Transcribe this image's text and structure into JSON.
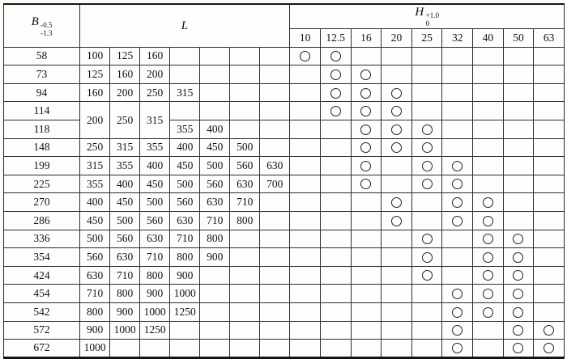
{
  "headers": {
    "b": {
      "base": "B",
      "sup": "-0.5",
      "sub": "-1.3"
    },
    "l": "L",
    "h": {
      "base": "H",
      "sub": "0",
      "sup": "+1.0"
    },
    "h_columns": [
      "10",
      "12.5",
      "16",
      "20",
      "25",
      "32",
      "40",
      "50",
      "63"
    ]
  },
  "marker": {
    "type": "circle",
    "meaning": "available-combination"
  },
  "colors": {
    "ink": "#1c1c1c",
    "paper": "#fbfbf8"
  },
  "rows": [
    {
      "b": "58",
      "l": [
        "100",
        "125",
        "160",
        "",
        "",
        "",
        ""
      ],
      "circles": [
        1,
        1,
        0,
        0,
        0,
        0,
        0,
        0,
        0
      ]
    },
    {
      "b": "73",
      "l": [
        "125",
        "160",
        "200",
        "",
        "",
        "",
        ""
      ],
      "circles": [
        0,
        1,
        1,
        0,
        0,
        0,
        0,
        0,
        0
      ]
    },
    {
      "b": "94",
      "l": [
        "160",
        "200",
        "250",
        "315",
        "",
        "",
        ""
      ],
      "circles": [
        0,
        1,
        1,
        1,
        0,
        0,
        0,
        0,
        0
      ]
    },
    {
      "b": "114",
      "l": [
        "200",
        "250",
        "315",
        "",
        "",
        "",
        ""
      ],
      "l_rowspan": [
        2,
        2,
        2,
        1,
        1,
        1,
        1
      ],
      "circles": [
        0,
        1,
        1,
        1,
        0,
        0,
        0,
        0,
        0
      ]
    },
    {
      "b": "118",
      "l": [
        "355",
        "400",
        "",
        ""
      ],
      "circles": [
        0,
        0,
        1,
        1,
        1,
        0,
        0,
        0,
        0
      ]
    },
    {
      "b": "148",
      "l": [
        "250",
        "315",
        "355",
        "400",
        "450",
        "500",
        ""
      ],
      "circles": [
        0,
        0,
        1,
        1,
        1,
        0,
        0,
        0,
        0
      ]
    },
    {
      "b": "199",
      "l": [
        "315",
        "355",
        "400",
        "450",
        "500",
        "560",
        "630"
      ],
      "circles": [
        0,
        0,
        1,
        0,
        1,
        1,
        0,
        0,
        0
      ]
    },
    {
      "b": "225",
      "l": [
        "355",
        "400",
        "450",
        "500",
        "560",
        "630",
        "700"
      ],
      "circles": [
        0,
        0,
        1,
        0,
        1,
        1,
        0,
        0,
        0
      ]
    },
    {
      "b": "270",
      "l": [
        "400",
        "450",
        "500",
        "560",
        "630",
        "710",
        ""
      ],
      "circles": [
        0,
        0,
        0,
        1,
        0,
        1,
        1,
        0,
        0
      ]
    },
    {
      "b": "286",
      "l": [
        "450",
        "500",
        "560",
        "630",
        "710",
        "800",
        ""
      ],
      "circles": [
        0,
        0,
        0,
        1,
        0,
        1,
        1,
        0,
        0
      ]
    },
    {
      "b": "336",
      "l": [
        "500",
        "560",
        "630",
        "710",
        "800",
        "",
        ""
      ],
      "circles": [
        0,
        0,
        0,
        0,
        1,
        0,
        1,
        1,
        0
      ]
    },
    {
      "b": "354",
      "l": [
        "560",
        "630",
        "710",
        "800",
        "900",
        "",
        ""
      ],
      "circles": [
        0,
        0,
        0,
        0,
        1,
        0,
        1,
        1,
        0
      ]
    },
    {
      "b": "424",
      "l": [
        "630",
        "710",
        "800",
        "900",
        "",
        "",
        ""
      ],
      "circles": [
        0,
        0,
        0,
        0,
        1,
        0,
        1,
        1,
        0
      ]
    },
    {
      "b": "454",
      "l": [
        "710",
        "800",
        "900",
        "1000",
        "",
        "",
        ""
      ],
      "circles": [
        0,
        0,
        0,
        0,
        0,
        1,
        1,
        1,
        0
      ]
    },
    {
      "b": "542",
      "l": [
        "800",
        "900",
        "1000",
        "1250",
        "",
        "",
        ""
      ],
      "circles": [
        0,
        0,
        0,
        0,
        0,
        1,
        1,
        1,
        0
      ]
    },
    {
      "b": "572",
      "l": [
        "900",
        "1000",
        "1250",
        "",
        "",
        "",
        ""
      ],
      "circles": [
        0,
        0,
        0,
        0,
        0,
        1,
        0,
        1,
        1
      ]
    },
    {
      "b": "672",
      "l": [
        "1000",
        "",
        "",
        "",
        "",
        "",
        ""
      ],
      "circles": [
        0,
        0,
        0,
        0,
        0,
        1,
        0,
        1,
        1
      ]
    }
  ]
}
